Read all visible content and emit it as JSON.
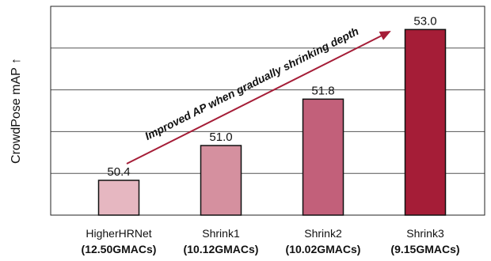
{
  "chart_data": {
    "type": "bar",
    "categories": [
      "HigherHRNet",
      "Shrink1",
      "Shrink2",
      "Shrink3"
    ],
    "category_sublabels": [
      "(12.50GMACs)",
      "(10.12GMACs)",
      "(10.02GMACs)",
      "(9.15GMACs)"
    ],
    "values": [
      50.4,
      51.0,
      51.8,
      53.0
    ],
    "value_labels": [
      "50.4",
      "51.0",
      "51.8",
      "53.0"
    ],
    "bar_colors": [
      "#e6b7c1",
      "#d5909f",
      "#c2607a",
      "#a51d37"
    ],
    "ylabel": "CrowdPose mAP ↑",
    "ylim": [
      49.8,
      53.4
    ],
    "grid": true,
    "annotation": {
      "text": "Improved AP when gradually shrinking depth",
      "arrow_color": "#a51d37"
    }
  }
}
